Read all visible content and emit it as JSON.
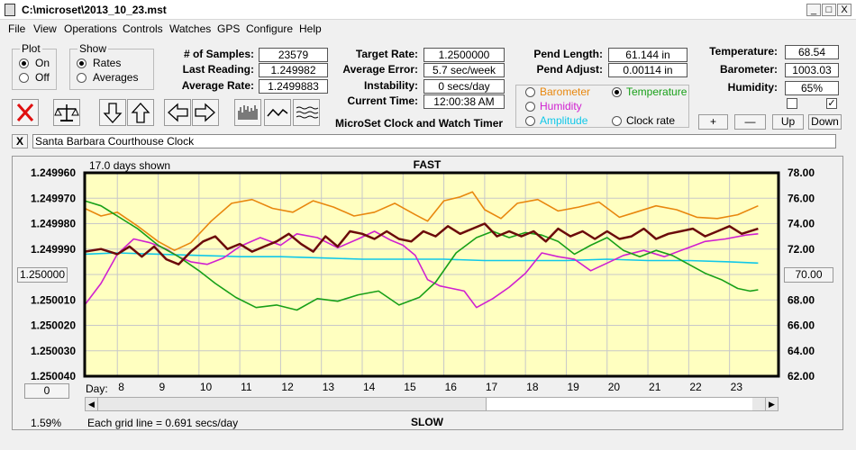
{
  "window": {
    "title": "C:\\microset\\2013_10_23.mst",
    "min": "_",
    "max": "□",
    "close": "X"
  },
  "menu": [
    "File",
    "View",
    "Operations",
    "Controls",
    "Watches",
    "GPS",
    "Configure",
    "Help"
  ],
  "plot_group": {
    "title": "Plot",
    "on": "On",
    "off": "Off",
    "selected": "On"
  },
  "show_group": {
    "title": "Show",
    "rates": "Rates",
    "averages": "Averages",
    "selected": "Rates"
  },
  "stats": {
    "samples_label": "# of Samples:",
    "samples": "23579",
    "last_label": "Last Reading:",
    "last": "1.249982",
    "avg_rate_label": "Average Rate:",
    "avg_rate": "1.2499883",
    "target_label": "Target Rate:",
    "target": "1.2500000",
    "avg_err_label": "Average Error:",
    "avg_err": "5.7 sec/week",
    "instab_label": "Instability:",
    "instab": "0 secs/day",
    "time_label": "Current Time:",
    "time": "12:00:38 AM",
    "pend_len_label": "Pend Length:",
    "pend_len": "61.144 in",
    "pend_adj_label": "Pend Adjust:",
    "pend_adj": "0.00114 in",
    "temp_label": "Temperature:",
    "temp": "68.54",
    "baro_label": "Barometer:",
    "baro": "1003.03",
    "hum_label": "Humidity:",
    "hum": "65%"
  },
  "app_name": "MicroSet Clock and Watch Timer",
  "aux": {
    "barometer": "Barometer",
    "temperature": "Temperature",
    "humidity": "Humidity",
    "amplitude": "Amplitude",
    "clock_rate": "Clock rate",
    "selected": "Temperature"
  },
  "colors": {
    "barometer": "#e8870e",
    "temperature": "#18a018",
    "humidity": "#d020d0",
    "amplitude": "#10c8e8",
    "rate": "#6b0a0a",
    "plot_bg": "#ffffc0"
  },
  "scale_buttons": {
    "plus": "+",
    "minus": "—",
    "up": "Up",
    "down": "Down"
  },
  "checkboxes": {
    "left_checked": false,
    "right_checked": true,
    "check_mark": "✓"
  },
  "clock_name": "Santa Barbara Courthouse Clock",
  "close_clock": "X",
  "chart_data": {
    "type": "line",
    "top_label": "FAST",
    "bottom_label": "SLOW",
    "days_shown": "17.0 days shown",
    "grid_note": "Each grid line = 0.691 secs/day",
    "percent": "1.59%",
    "day_label": "Day:",
    "days": [
      "8",
      "9",
      "10",
      "11",
      "12",
      "13",
      "14",
      "15",
      "16",
      "17",
      "18",
      "19",
      "20",
      "21",
      "22",
      "23"
    ],
    "xlim": [
      7.2,
      24.2
    ],
    "left_ticks": [
      "1.249960",
      "1.249970",
      "1.249980",
      "1.249990",
      "1.250000",
      "1.250010",
      "1.250020",
      "1.250030",
      "1.250040"
    ],
    "left_center": "1.250000",
    "ylim_left": [
      1.24996,
      1.25004
    ],
    "right_ticks": [
      "78.00",
      "76.00",
      "74.00",
      "72.00",
      "70.00",
      "68.00",
      "66.00",
      "64.00",
      "62.00"
    ],
    "right_center": "70.00",
    "ylim_right": [
      62,
      78
    ],
    "reset_btn": "0",
    "series": [
      {
        "key": "barometer",
        "x": [
          7.2,
          7.6,
          8.0,
          8.5,
          9.0,
          9.4,
          9.8,
          10.3,
          10.8,
          11.3,
          11.8,
          12.3,
          12.8,
          13.3,
          13.8,
          14.3,
          14.8,
          15.3,
          15.6,
          16.0,
          16.4,
          16.7,
          17.0,
          17.4,
          17.8,
          18.3,
          18.8,
          19.3,
          19.8,
          20.3,
          20.7,
          21.2,
          21.7,
          22.2,
          22.7,
          23.2,
          23.7
        ],
        "y": [
          75.2,
          74.6,
          74.9,
          73.8,
          72.6,
          71.9,
          72.5,
          74.2,
          75.6,
          75.9,
          75.2,
          74.9,
          75.8,
          75.3,
          74.6,
          74.9,
          75.6,
          74.7,
          74.2,
          75.8,
          76.1,
          76.5,
          75.1,
          74.4,
          75.6,
          75.9,
          75.0,
          75.3,
          75.7,
          74.5,
          74.9,
          75.4,
          75.1,
          74.5,
          74.4,
          74.7,
          75.4
        ]
      },
      {
        "key": "temperature",
        "x": [
          7.2,
          7.6,
          8.0,
          8.5,
          9.0,
          9.5,
          10.0,
          10.4,
          10.9,
          11.4,
          11.9,
          12.4,
          12.9,
          13.4,
          13.9,
          14.4,
          14.9,
          15.4,
          15.8,
          16.3,
          16.8,
          17.2,
          17.6,
          18.0,
          18.4,
          18.8,
          19.2,
          19.6,
          20.0,
          20.4,
          20.8,
          21.2,
          21.6,
          22.0,
          22.4,
          22.8,
          23.2,
          23.5,
          23.7
        ],
        "y": [
          75.8,
          75.4,
          74.6,
          73.6,
          72.3,
          71.4,
          70.3,
          69.3,
          68.2,
          67.4,
          67.6,
          67.2,
          68.1,
          67.9,
          68.4,
          68.7,
          67.6,
          68.2,
          69.4,
          71.7,
          72.9,
          73.4,
          72.9,
          73.3,
          73.1,
          72.6,
          71.6,
          72.3,
          72.9,
          71.9,
          71.4,
          71.9,
          71.5,
          70.8,
          70.1,
          69.6,
          68.9,
          68.7,
          68.8
        ]
      },
      {
        "key": "humidity",
        "x": [
          7.2,
          7.6,
          8.0,
          8.4,
          8.8,
          9.2,
          9.5,
          9.8,
          10.2,
          10.6,
          11.0,
          11.5,
          12.0,
          12.4,
          12.9,
          13.4,
          13.9,
          14.3,
          14.7,
          15.0,
          15.3,
          15.6,
          15.9,
          16.2,
          16.5,
          16.8,
          17.2,
          17.6,
          18.0,
          18.4,
          18.8,
          19.2,
          19.6,
          20.0,
          20.4,
          20.9,
          21.4,
          21.9,
          22.4,
          22.9,
          23.4,
          23.7
        ],
        "y": [
          67.6,
          69.3,
          71.6,
          72.8,
          72.5,
          72.0,
          71.4,
          71.0,
          70.8,
          71.3,
          72.2,
          72.9,
          72.3,
          73.2,
          72.9,
          72.1,
          72.8,
          73.4,
          72.7,
          72.3,
          71.5,
          69.6,
          69.1,
          68.9,
          68.7,
          67.4,
          68.1,
          69.0,
          70.1,
          71.7,
          71.4,
          71.2,
          70.3,
          70.9,
          71.5,
          71.9,
          71.4,
          72.0,
          72.6,
          72.8,
          73.1,
          73.2
        ]
      },
      {
        "key": "amplitude",
        "x": [
          7.2,
          8.0,
          9.0,
          10.0,
          11.0,
          12.0,
          13.0,
          14.0,
          15.0,
          16.0,
          17.0,
          18.0,
          19.0,
          20.0,
          21.0,
          22.0,
          23.0,
          23.7
        ],
        "y": [
          71.6,
          71.7,
          71.6,
          71.5,
          71.4,
          71.4,
          71.3,
          71.2,
          71.2,
          71.2,
          71.1,
          71.1,
          71.1,
          71.2,
          71.1,
          71.1,
          71.0,
          70.9
        ]
      },
      {
        "key": "rate",
        "x": [
          7.2,
          7.6,
          8.0,
          8.3,
          8.6,
          8.9,
          9.2,
          9.5,
          9.8,
          10.1,
          10.4,
          10.7,
          11.0,
          11.3,
          11.6,
          11.9,
          12.2,
          12.5,
          12.8,
          13.1,
          13.4,
          13.7,
          14.0,
          14.3,
          14.6,
          14.9,
          15.2,
          15.5,
          15.8,
          16.1,
          16.4,
          16.7,
          17.0,
          17.3,
          17.6,
          17.9,
          18.2,
          18.5,
          18.8,
          19.1,
          19.4,
          19.7,
          20.0,
          20.3,
          20.6,
          20.9,
          21.2,
          21.5,
          21.8,
          22.1,
          22.4,
          22.7,
          23.0,
          23.3,
          23.7
        ],
        "y": [
          1.249991,
          1.24999,
          1.249992,
          1.249989,
          1.249993,
          1.249989,
          1.249994,
          1.249996,
          1.249991,
          1.249987,
          1.249985,
          1.24999,
          1.249988,
          1.249991,
          1.249989,
          1.249987,
          1.249984,
          1.249988,
          1.249991,
          1.249985,
          1.249989,
          1.249983,
          1.249984,
          1.249986,
          1.249983,
          1.249986,
          1.249987,
          1.249983,
          1.249985,
          1.249981,
          1.249984,
          1.249982,
          1.24998,
          1.249985,
          1.249983,
          1.249985,
          1.249983,
          1.249987,
          1.249982,
          1.249985,
          1.249983,
          1.249986,
          1.249983,
          1.249986,
          1.249985,
          1.249982,
          1.249986,
          1.249984,
          1.249983,
          1.249982,
          1.249985,
          1.249983,
          1.249981,
          1.249984,
          1.249982
        ]
      }
    ]
  }
}
